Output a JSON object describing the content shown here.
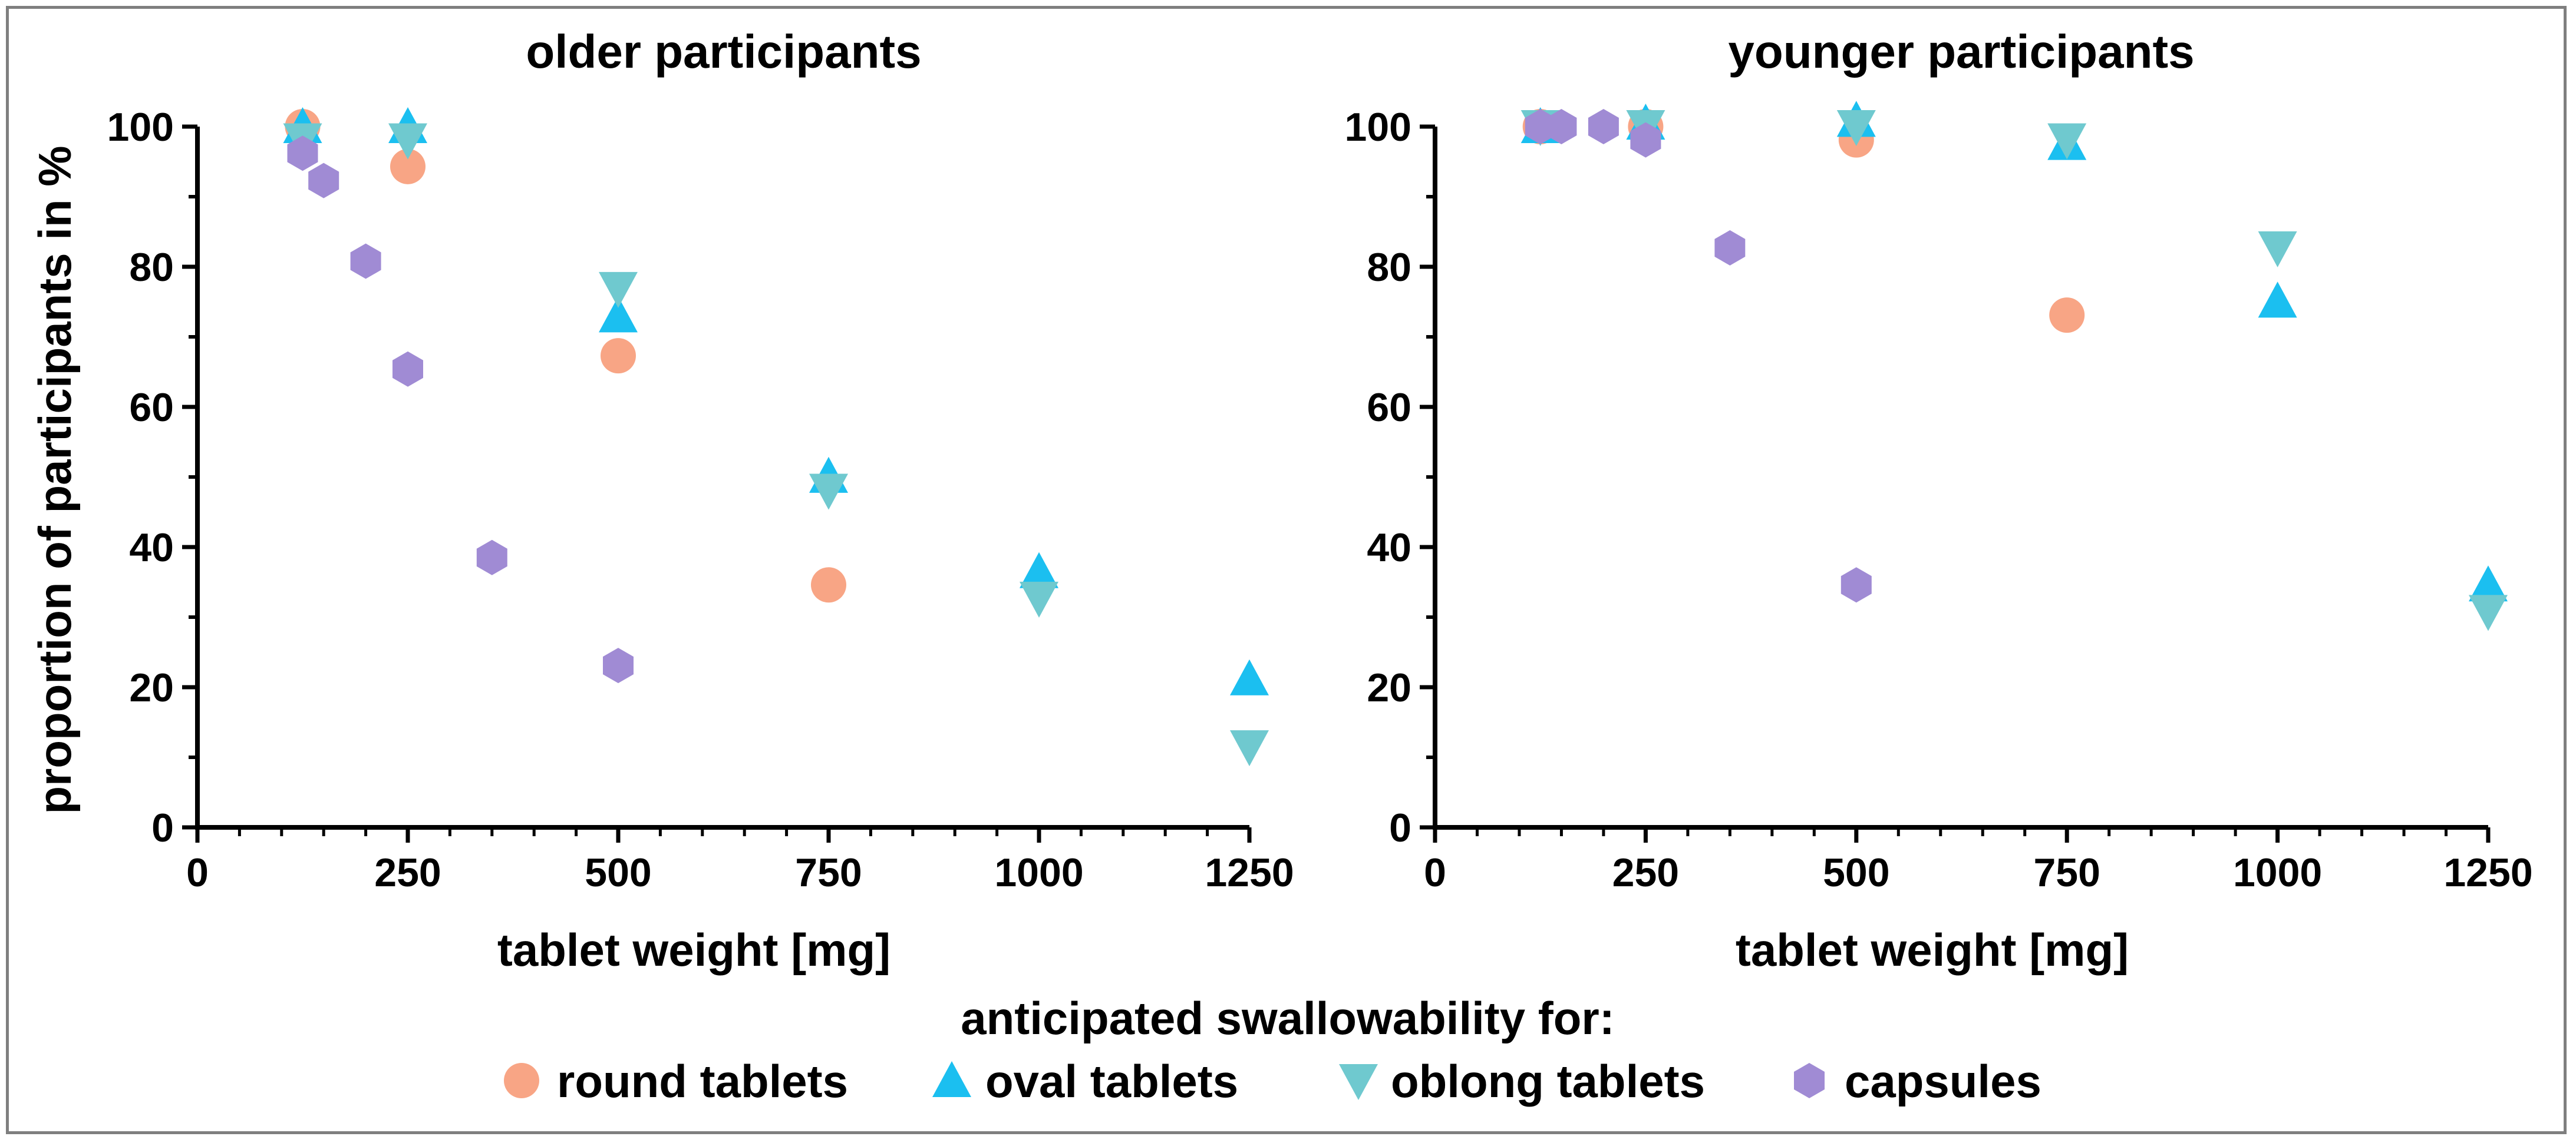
{
  "legend": {
    "title": "anticipated swallowability for:",
    "items": [
      {
        "key": "round",
        "label": "round tablets",
        "marker": "circle",
        "color": "#F8A585"
      },
      {
        "key": "oval",
        "label": "oval tablets",
        "marker": "triangle-up",
        "color": "#1BBFF0"
      },
      {
        "key": "oblong",
        "label": "oblong tablets",
        "marker": "triangle-down",
        "color": "#6FC9CF"
      },
      {
        "key": "capsule",
        "label": "capsules",
        "marker": "hexagon",
        "color": "#A08BD4"
      }
    ]
  },
  "chart_data": [
    {
      "type": "scatter",
      "title": "older participants",
      "xlabel": "tablet weight [mg]",
      "ylabel": "proportion of participants in %",
      "xlim": [
        0,
        1250
      ],
      "ylim": [
        0,
        100
      ],
      "xticks": [
        0,
        250,
        500,
        750,
        1000,
        1250
      ],
      "yticks": [
        0,
        20,
        40,
        60,
        80,
        100
      ],
      "series": [
        {
          "name": "round tablets",
          "key": "round",
          "points": [
            [
              125,
              100
            ],
            [
              250,
              94.3
            ],
            [
              500,
              67.3
            ],
            [
              750,
              34.6
            ]
          ]
        },
        {
          "name": "oval tablets",
          "key": "oval",
          "points": [
            [
              125,
              100
            ],
            [
              250,
              100
            ],
            [
              500,
              73
            ],
            [
              750,
              50.1
            ],
            [
              1000,
              36.5
            ],
            [
              1250,
              21.2
            ]
          ]
        },
        {
          "name": "oblong tablets",
          "key": "oblong",
          "points": [
            [
              125,
              98.1
            ],
            [
              250,
              98.1
            ],
            [
              500,
              76.9
            ],
            [
              750,
              48.1
            ],
            [
              1000,
              32.7
            ],
            [
              1250,
              11.5
            ]
          ]
        },
        {
          "name": "capsules",
          "key": "capsule",
          "points": [
            [
              125,
              96.2
            ],
            [
              150,
              92.3
            ],
            [
              200,
              80.8
            ],
            [
              250,
              65.4
            ],
            [
              350,
              38.5
            ],
            [
              500,
              23.1
            ]
          ]
        }
      ]
    },
    {
      "type": "scatter",
      "title": "younger participants",
      "xlabel": "tablet weight [mg]",
      "ylabel": "",
      "xlim": [
        0,
        1250
      ],
      "ylim": [
        0,
        100
      ],
      "xticks": [
        0,
        250,
        500,
        750,
        1000,
        1250
      ],
      "yticks": [
        0,
        20,
        40,
        60,
        80,
        100
      ],
      "series": [
        {
          "name": "round tablets",
          "key": "round",
          "points": [
            [
              125,
              100
            ],
            [
              250,
              100
            ],
            [
              500,
              98.1
            ],
            [
              750,
              73.1
            ]
          ]
        },
        {
          "name": "oval tablets",
          "key": "oval",
          "points": [
            [
              125,
              100
            ],
            [
              250,
              100.5
            ],
            [
              500,
              100.9
            ],
            [
              750,
              97.6
            ],
            [
              1000,
              75.1
            ],
            [
              1250,
              34.6
            ]
          ]
        },
        {
          "name": "oblong tablets",
          "key": "oblong",
          "points": [
            [
              125,
              100
            ],
            [
              250,
              100
            ],
            [
              500,
              100
            ],
            [
              750,
              98.1
            ],
            [
              1000,
              82.7
            ],
            [
              1250,
              30.8
            ]
          ]
        },
        {
          "name": "capsules",
          "key": "capsule",
          "points": [
            [
              125,
              100
            ],
            [
              150,
              100
            ],
            [
              200,
              100
            ],
            [
              250,
              98.1
            ],
            [
              350,
              82.7
            ],
            [
              500,
              34.6
            ]
          ]
        }
      ]
    }
  ]
}
